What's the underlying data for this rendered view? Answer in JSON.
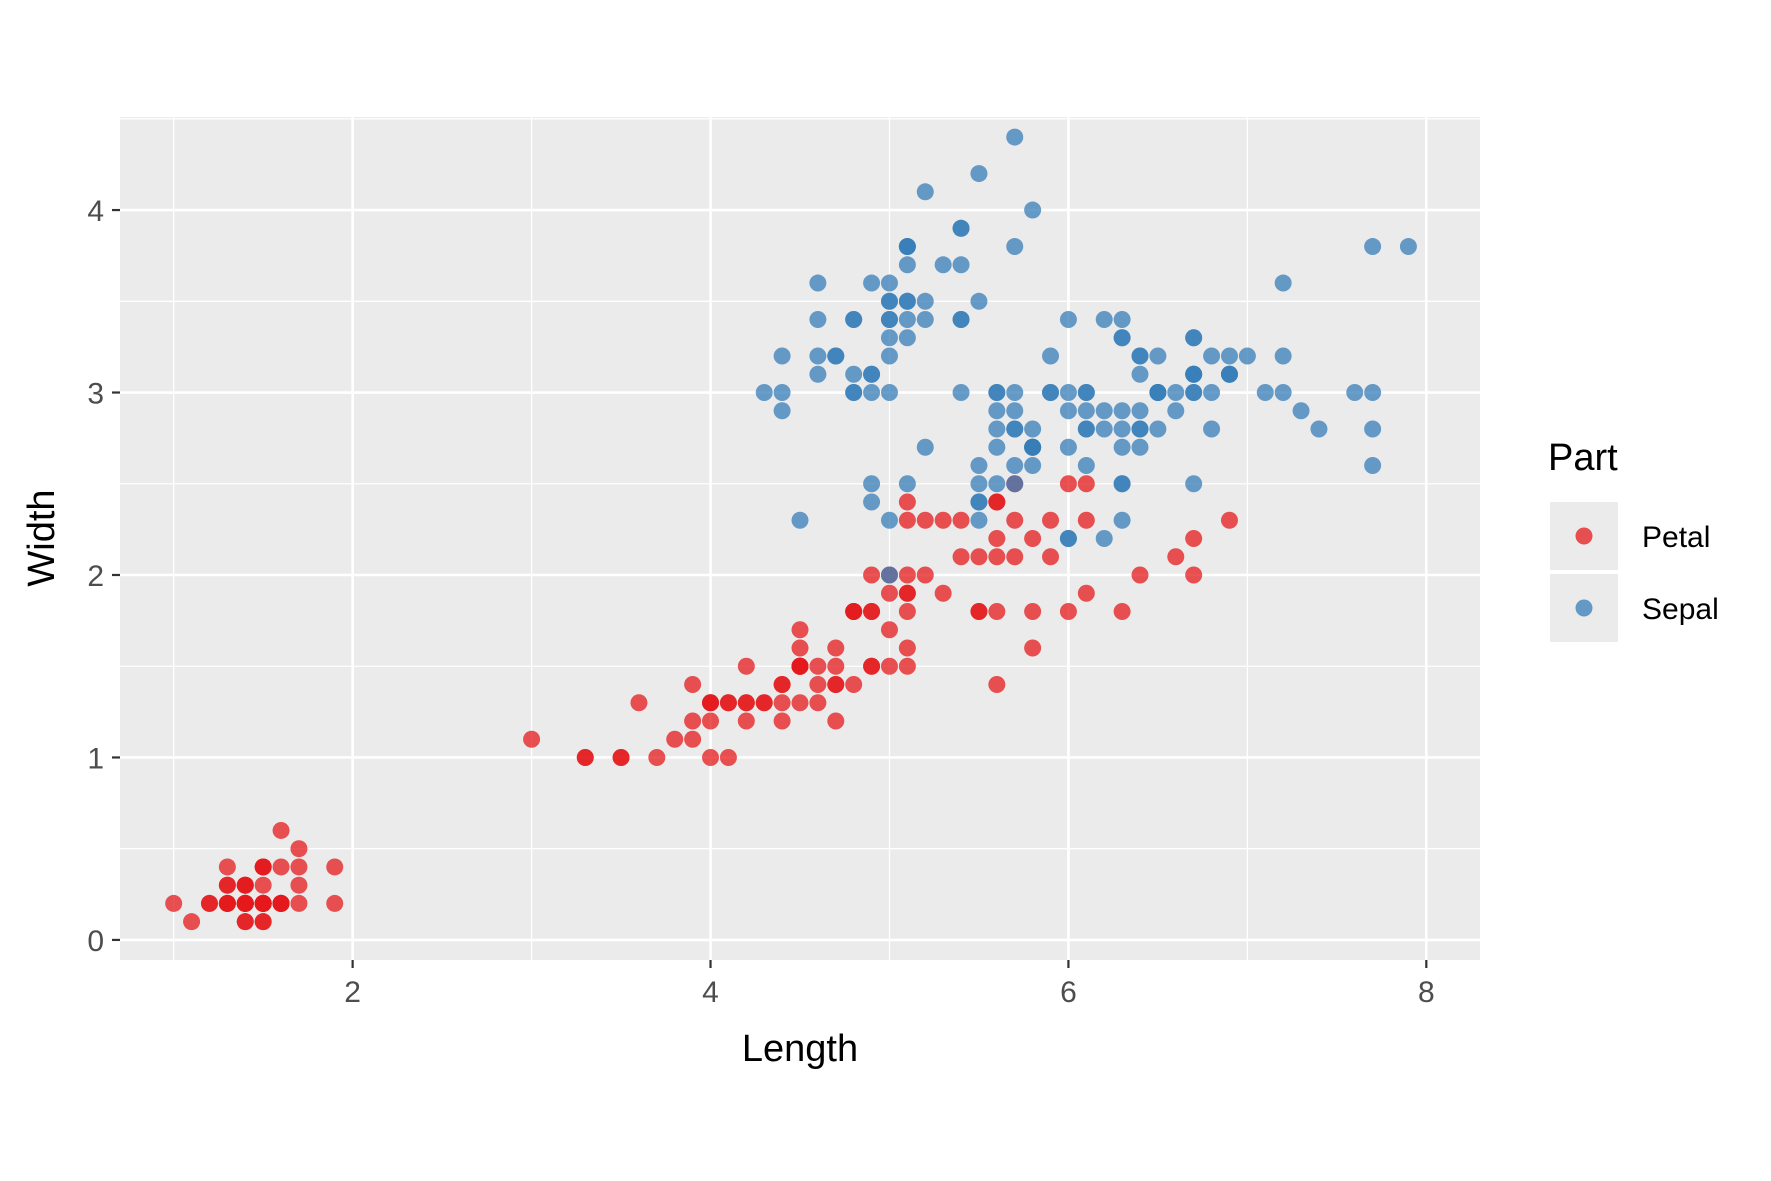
{
  "chart_data": {
    "type": "scatter",
    "xlabel": "Length",
    "ylabel": "Width",
    "xlim": [
      0.7,
      8.3
    ],
    "ylim": [
      -0.11,
      4.51
    ],
    "x_ticks": [
      2,
      4,
      6,
      8
    ],
    "y_ticks": [
      0,
      1,
      2,
      3,
      4
    ],
    "x_tick_labels": [
      "2",
      "4",
      "6",
      "8"
    ],
    "y_tick_labels": [
      "0",
      "1",
      "2",
      "3",
      "4"
    ],
    "grid": true,
    "legend": {
      "title": "Part",
      "position": "right"
    },
    "colors": {
      "panel": "#ebebeb",
      "grid": "#ffffff",
      "Petal": "#e41a1c",
      "Sepal": "#377eb8"
    },
    "series": [
      {
        "name": "Petal",
        "color": "#e41a1c",
        "points": [
          [
            1.4,
            0.2
          ],
          [
            1.4,
            0.2
          ],
          [
            1.3,
            0.2
          ],
          [
            1.5,
            0.2
          ],
          [
            1.4,
            0.2
          ],
          [
            1.7,
            0.4
          ],
          [
            1.4,
            0.3
          ],
          [
            1.5,
            0.2
          ],
          [
            1.4,
            0.2
          ],
          [
            1.5,
            0.1
          ],
          [
            1.5,
            0.2
          ],
          [
            1.6,
            0.2
          ],
          [
            1.4,
            0.1
          ],
          [
            1.1,
            0.1
          ],
          [
            1.2,
            0.2
          ],
          [
            1.5,
            0.4
          ],
          [
            1.3,
            0.4
          ],
          [
            1.4,
            0.3
          ],
          [
            1.7,
            0.3
          ],
          [
            1.5,
            0.3
          ],
          [
            1.7,
            0.2
          ],
          [
            1.5,
            0.4
          ],
          [
            1.0,
            0.2
          ],
          [
            1.7,
            0.5
          ],
          [
            1.9,
            0.2
          ],
          [
            1.6,
            0.2
          ],
          [
            1.6,
            0.4
          ],
          [
            1.5,
            0.2
          ],
          [
            1.4,
            0.2
          ],
          [
            1.6,
            0.2
          ],
          [
            1.6,
            0.2
          ],
          [
            1.5,
            0.4
          ],
          [
            1.5,
            0.1
          ],
          [
            1.4,
            0.2
          ],
          [
            1.5,
            0.2
          ],
          [
            1.2,
            0.2
          ],
          [
            1.3,
            0.2
          ],
          [
            1.4,
            0.1
          ],
          [
            1.3,
            0.2
          ],
          [
            1.5,
            0.2
          ],
          [
            1.3,
            0.3
          ],
          [
            1.3,
            0.3
          ],
          [
            1.3,
            0.2
          ],
          [
            1.6,
            0.6
          ],
          [
            1.9,
            0.4
          ],
          [
            1.4,
            0.3
          ],
          [
            1.6,
            0.2
          ],
          [
            1.4,
            0.2
          ],
          [
            1.5,
            0.2
          ],
          [
            1.4,
            0.2
          ],
          [
            4.7,
            1.4
          ],
          [
            4.5,
            1.5
          ],
          [
            4.9,
            1.5
          ],
          [
            4.0,
            1.3
          ],
          [
            4.6,
            1.5
          ],
          [
            4.5,
            1.3
          ],
          [
            4.7,
            1.6
          ],
          [
            3.3,
            1.0
          ],
          [
            4.6,
            1.3
          ],
          [
            3.9,
            1.4
          ],
          [
            3.5,
            1.0
          ],
          [
            4.2,
            1.5
          ],
          [
            4.0,
            1.0
          ],
          [
            4.7,
            1.4
          ],
          [
            3.6,
            1.3
          ],
          [
            4.4,
            1.4
          ],
          [
            4.5,
            1.5
          ],
          [
            4.1,
            1.0
          ],
          [
            4.5,
            1.5
          ],
          [
            3.9,
            1.1
          ],
          [
            4.8,
            1.8
          ],
          [
            4.0,
            1.3
          ],
          [
            4.9,
            1.5
          ],
          [
            4.7,
            1.2
          ],
          [
            4.3,
            1.3
          ],
          [
            4.4,
            1.4
          ],
          [
            4.8,
            1.4
          ],
          [
            5.0,
            1.7
          ],
          [
            4.5,
            1.5
          ],
          [
            3.5,
            1.0
          ],
          [
            3.8,
            1.1
          ],
          [
            3.7,
            1.0
          ],
          [
            3.9,
            1.2
          ],
          [
            5.1,
            1.6
          ],
          [
            4.5,
            1.5
          ],
          [
            4.5,
            1.6
          ],
          [
            4.7,
            1.5
          ],
          [
            4.4,
            1.3
          ],
          [
            4.1,
            1.3
          ],
          [
            4.0,
            1.3
          ],
          [
            4.4,
            1.2
          ],
          [
            4.6,
            1.4
          ],
          [
            4.0,
            1.2
          ],
          [
            3.3,
            1.0
          ],
          [
            4.2,
            1.3
          ],
          [
            4.2,
            1.2
          ],
          [
            4.2,
            1.3
          ],
          [
            4.3,
            1.3
          ],
          [
            3.0,
            1.1
          ],
          [
            4.1,
            1.3
          ],
          [
            6.0,
            2.5
          ],
          [
            5.1,
            1.9
          ],
          [
            5.9,
            2.1
          ],
          [
            5.6,
            1.8
          ],
          [
            5.8,
            2.2
          ],
          [
            6.6,
            2.1
          ],
          [
            4.5,
            1.7
          ],
          [
            6.3,
            1.8
          ],
          [
            5.8,
            1.8
          ],
          [
            6.1,
            2.5
          ],
          [
            5.1,
            2.0
          ],
          [
            5.3,
            1.9
          ],
          [
            5.5,
            2.1
          ],
          [
            5.0,
            2.0
          ],
          [
            5.1,
            2.4
          ],
          [
            5.3,
            2.3
          ],
          [
            5.5,
            1.8
          ],
          [
            6.7,
            2.2
          ],
          [
            6.9,
            2.3
          ],
          [
            5.0,
            1.5
          ],
          [
            5.7,
            2.3
          ],
          [
            4.9,
            2.0
          ],
          [
            6.7,
            2.0
          ],
          [
            4.9,
            1.8
          ],
          [
            5.7,
            2.1
          ],
          [
            6.0,
            1.8
          ],
          [
            4.8,
            1.8
          ],
          [
            4.9,
            1.8
          ],
          [
            5.6,
            2.1
          ],
          [
            5.8,
            1.6
          ],
          [
            6.1,
            1.9
          ],
          [
            6.4,
            2.0
          ],
          [
            5.6,
            2.2
          ],
          [
            5.1,
            1.5
          ],
          [
            5.6,
            1.4
          ],
          [
            6.1,
            2.3
          ],
          [
            5.6,
            2.4
          ],
          [
            5.5,
            1.8
          ],
          [
            4.8,
            1.8
          ],
          [
            5.4,
            2.1
          ],
          [
            5.6,
            2.4
          ],
          [
            5.1,
            2.3
          ],
          [
            5.1,
            1.9
          ],
          [
            5.9,
            2.3
          ],
          [
            5.7,
            2.5
          ],
          [
            5.2,
            2.3
          ],
          [
            5.0,
            1.9
          ],
          [
            5.2,
            2.0
          ],
          [
            5.4,
            2.3
          ],
          [
            5.1,
            1.8
          ]
        ]
      },
      {
        "name": "Sepal",
        "color": "#377eb8",
        "points": [
          [
            5.1,
            3.5
          ],
          [
            4.9,
            3.0
          ],
          [
            4.7,
            3.2
          ],
          [
            4.6,
            3.1
          ],
          [
            5.0,
            3.6
          ],
          [
            5.4,
            3.9
          ],
          [
            4.6,
            3.4
          ],
          [
            5.0,
            3.4
          ],
          [
            4.4,
            2.9
          ],
          [
            4.9,
            3.1
          ],
          [
            5.4,
            3.7
          ],
          [
            4.8,
            3.4
          ],
          [
            4.8,
            3.0
          ],
          [
            4.3,
            3.0
          ],
          [
            5.8,
            4.0
          ],
          [
            5.7,
            4.4
          ],
          [
            5.4,
            3.9
          ],
          [
            5.1,
            3.5
          ],
          [
            5.7,
            3.8
          ],
          [
            5.1,
            3.8
          ],
          [
            5.4,
            3.4
          ],
          [
            5.1,
            3.7
          ],
          [
            4.6,
            3.6
          ],
          [
            5.1,
            3.3
          ],
          [
            4.8,
            3.4
          ],
          [
            5.0,
            3.0
          ],
          [
            5.0,
            3.4
          ],
          [
            5.2,
            3.5
          ],
          [
            5.2,
            3.4
          ],
          [
            4.7,
            3.2
          ],
          [
            4.8,
            3.1
          ],
          [
            5.4,
            3.4
          ],
          [
            5.2,
            4.1
          ],
          [
            5.5,
            4.2
          ],
          [
            4.9,
            3.1
          ],
          [
            5.0,
            3.2
          ],
          [
            5.5,
            3.5
          ],
          [
            4.9,
            3.6
          ],
          [
            4.4,
            3.0
          ],
          [
            5.1,
            3.4
          ],
          [
            5.0,
            3.5
          ],
          [
            4.5,
            2.3
          ],
          [
            4.4,
            3.2
          ],
          [
            5.0,
            3.5
          ],
          [
            5.1,
            3.8
          ],
          [
            4.8,
            3.0
          ],
          [
            5.1,
            3.8
          ],
          [
            4.6,
            3.2
          ],
          [
            5.3,
            3.7
          ],
          [
            5.0,
            3.3
          ],
          [
            7.0,
            3.2
          ],
          [
            6.4,
            3.2
          ],
          [
            6.9,
            3.1
          ],
          [
            5.5,
            2.3
          ],
          [
            6.5,
            2.8
          ],
          [
            5.7,
            2.8
          ],
          [
            6.3,
            3.3
          ],
          [
            4.9,
            2.4
          ],
          [
            6.6,
            2.9
          ],
          [
            5.2,
            2.7
          ],
          [
            5.0,
            2.0
          ],
          [
            5.9,
            3.0
          ],
          [
            6.0,
            2.2
          ],
          [
            6.1,
            2.9
          ],
          [
            5.6,
            2.9
          ],
          [
            6.7,
            3.1
          ],
          [
            5.6,
            3.0
          ],
          [
            5.8,
            2.7
          ],
          [
            6.2,
            2.2
          ],
          [
            5.6,
            2.5
          ],
          [
            5.9,
            3.2
          ],
          [
            6.1,
            2.8
          ],
          [
            6.3,
            2.5
          ],
          [
            6.1,
            2.8
          ],
          [
            6.4,
            2.9
          ],
          [
            6.6,
            3.0
          ],
          [
            6.8,
            2.8
          ],
          [
            6.7,
            3.0
          ],
          [
            6.0,
            2.9
          ],
          [
            5.7,
            2.6
          ],
          [
            5.5,
            2.4
          ],
          [
            5.5,
            2.4
          ],
          [
            5.8,
            2.7
          ],
          [
            6.0,
            2.7
          ],
          [
            5.4,
            3.0
          ],
          [
            6.0,
            3.4
          ],
          [
            6.7,
            3.1
          ],
          [
            6.3,
            2.3
          ],
          [
            5.6,
            3.0
          ],
          [
            5.5,
            2.5
          ],
          [
            5.5,
            2.6
          ],
          [
            6.1,
            3.0
          ],
          [
            5.8,
            2.6
          ],
          [
            5.0,
            2.3
          ],
          [
            5.6,
            2.7
          ],
          [
            5.7,
            3.0
          ],
          [
            5.7,
            2.9
          ],
          [
            6.2,
            2.9
          ],
          [
            5.1,
            2.5
          ],
          [
            5.7,
            2.8
          ],
          [
            6.3,
            3.3
          ],
          [
            5.8,
            2.7
          ],
          [
            7.1,
            3.0
          ],
          [
            6.3,
            2.9
          ],
          [
            6.5,
            3.0
          ],
          [
            7.6,
            3.0
          ],
          [
            4.9,
            2.5
          ],
          [
            7.3,
            2.9
          ],
          [
            6.7,
            2.5
          ],
          [
            7.2,
            3.6
          ],
          [
            6.5,
            3.2
          ],
          [
            6.4,
            2.7
          ],
          [
            6.8,
            3.0
          ],
          [
            5.7,
            2.5
          ],
          [
            5.8,
            2.8
          ],
          [
            6.4,
            3.2
          ],
          [
            6.5,
            3.0
          ],
          [
            7.7,
            3.8
          ],
          [
            7.7,
            2.6
          ],
          [
            6.0,
            2.2
          ],
          [
            6.9,
            3.2
          ],
          [
            5.6,
            2.8
          ],
          [
            7.7,
            2.8
          ],
          [
            6.3,
            2.7
          ],
          [
            6.7,
            3.3
          ],
          [
            7.2,
            3.2
          ],
          [
            6.2,
            2.8
          ],
          [
            6.1,
            3.0
          ],
          [
            6.4,
            2.8
          ],
          [
            7.2,
            3.0
          ],
          [
            7.4,
            2.8
          ],
          [
            7.9,
            3.8
          ],
          [
            6.4,
            2.8
          ],
          [
            6.3,
            2.8
          ],
          [
            6.1,
            2.6
          ],
          [
            7.7,
            3.0
          ],
          [
            6.3,
            3.4
          ],
          [
            6.4,
            3.1
          ],
          [
            6.0,
            3.0
          ],
          [
            6.9,
            3.1
          ],
          [
            6.7,
            3.1
          ],
          [
            6.9,
            3.1
          ],
          [
            5.8,
            2.7
          ],
          [
            6.8,
            3.2
          ],
          [
            6.7,
            3.3
          ],
          [
            6.7,
            3.0
          ],
          [
            6.3,
            2.5
          ],
          [
            6.5,
            3.0
          ],
          [
            6.2,
            3.4
          ],
          [
            5.9,
            3.0
          ]
        ]
      }
    ]
  }
}
